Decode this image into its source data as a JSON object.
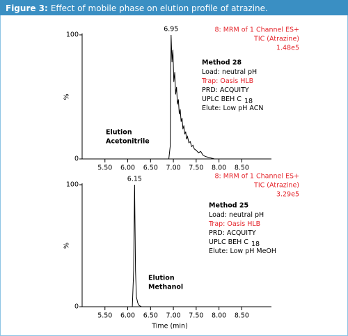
{
  "figure": {
    "label": "Figure 3:",
    "caption": "Effect of mobile phase on elution profile of atrazine."
  },
  "chart_data": [
    {
      "type": "line",
      "color": "#000000",
      "x": [
        5.0,
        6.9,
        6.93,
        6.95,
        6.97,
        6.99,
        7.01,
        7.03,
        7.05,
        7.07,
        7.09,
        7.11,
        7.13,
        7.15,
        7.17,
        7.19,
        7.21,
        7.23,
        7.25,
        7.27,
        7.29,
        7.31,
        7.34,
        7.37,
        7.4,
        7.43,
        7.46,
        7.5,
        7.55,
        7.6,
        7.65,
        7.7,
        7.8,
        7.9,
        9.15
      ],
      "values": [
        0,
        0,
        10,
        100,
        78,
        88,
        62,
        70,
        52,
        58,
        44,
        48,
        36,
        40,
        30,
        33,
        24,
        27,
        20,
        22,
        16,
        18,
        13,
        14,
        10,
        11,
        8,
        7,
        5,
        6,
        3,
        2,
        1,
        0,
        0
      ],
      "xlim": [
        5.0,
        9.15
      ],
      "ylim": [
        0,
        100
      ],
      "xticks": [
        {
          "value": 5.5,
          "label": "5.50"
        },
        {
          "value": 6,
          "label": "6.00"
        },
        {
          "value": 6.5,
          "label": "6.50"
        },
        {
          "value": 7,
          "label": "7.00"
        },
        {
          "value": 7.5,
          "label": "7.50"
        },
        {
          "value": 8,
          "label": "8.00"
        },
        {
          "value": 8.5,
          "label": "8.50"
        }
      ],
      "yticks": [
        0,
        100
      ],
      "ylabel": "%",
      "peak": {
        "x": 6.95,
        "y": 100
      },
      "channel_info": [
        "8: MRM of 1 Channel ES+",
        "TIC (Atrazine)",
        "1.48e5"
      ],
      "method": {
        "title": "Method 28",
        "lines": [
          {
            "text": "Load: neutral pH",
            "color": "#000000"
          },
          {
            "text": "Trap: Oasis HLB",
            "color": "#e4232a"
          },
          {
            "text": "PRD: ACQUITY",
            "color": "#000000"
          },
          {
            "text": "UPLC BEH C",
            "subscript": "18",
            "color": "#000000"
          },
          {
            "text": "Elute: Low pH ACN",
            "color": "#000000"
          }
        ]
      },
      "elution": [
        "Elution",
        "Acetonitrile"
      ]
    },
    {
      "type": "line",
      "color": "#000000",
      "x": [
        5.0,
        6.1,
        6.13,
        6.15,
        6.17,
        6.19,
        6.22,
        6.25,
        6.3,
        9.15
      ],
      "values": [
        0,
        0,
        30,
        100,
        30,
        8,
        3,
        1,
        0,
        0
      ],
      "xlim": [
        5.0,
        9.15
      ],
      "ylim": [
        0,
        100
      ],
      "xticks": [
        {
          "value": 5.5,
          "label": "5.50"
        },
        {
          "value": 6,
          "label": "6.00"
        },
        {
          "value": 6.5,
          "label": "6.50"
        },
        {
          "value": 7,
          "label": "7.00"
        },
        {
          "value": 7.5,
          "label": "7.50"
        },
        {
          "value": 8,
          "label": "8.00"
        },
        {
          "value": 8.5,
          "label": "8.50"
        }
      ],
      "yticks": [
        0,
        100
      ],
      "ylabel": "%",
      "xlabel": "Time (min)",
      "peak": {
        "x": 6.15,
        "y": 100
      },
      "channel_info": [
        "8: MRM of 1 Channel ES+",
        "TIC (Atrazine)",
        "3.29e5"
      ],
      "method": {
        "title": "Method 25",
        "lines": [
          {
            "text": "Load: neutral pH",
            "color": "#000000"
          },
          {
            "text": "Trap: Oasis HLB",
            "color": "#e4232a"
          },
          {
            "text": "PRD: ACQUITY",
            "color": "#000000"
          },
          {
            "text": "UPLC BEH C",
            "subscript": "18",
            "color": "#000000"
          },
          {
            "text": "Elute: Low pH MeOH",
            "color": "#000000"
          }
        ]
      },
      "elution": [
        "Elution",
        "Methanol"
      ]
    }
  ]
}
